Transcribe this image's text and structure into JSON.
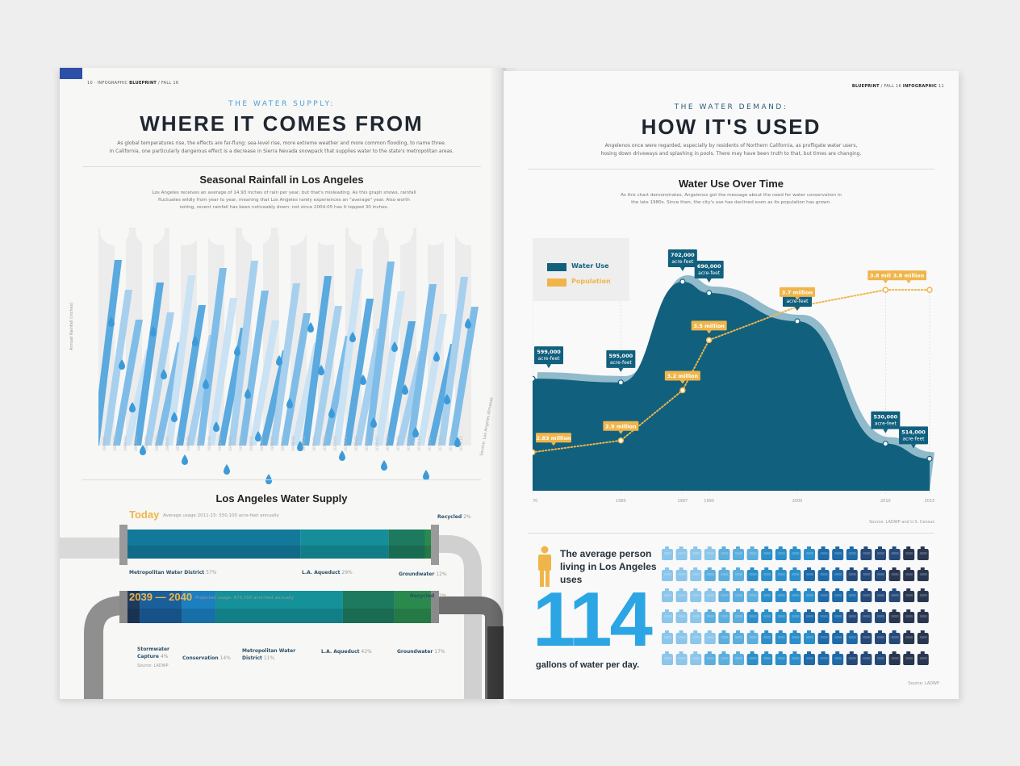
{
  "left_page": {
    "folio": {
      "page": "10",
      "section": "INFOGRAPHIC",
      "publication": "BLUEPRINT",
      "issue": "FALL 16"
    },
    "kicker": "THE WATER SUPPLY:",
    "headline": "WHERE IT COMES FROM",
    "intro_line1": "As global temperatures rise, the effects are far-flung: sea-level rise, more extreme weather and more common flooding, to name three.",
    "intro_line2": "In California, one particularly dangerous effect is a decrease in Sierra Nevada snowpack that supplies water to the state's metropolitan areas.",
    "rainfall": {
      "title": "Seasonal Rainfall in Los Angeles",
      "body_line1": "Los Angeles receives an average of 14.93 inches of rain per year, but that's misleading. As this graph shows, rainfall",
      "body_line2": "fluctuates wildly from year to year, meaning that Los Angeles rarely experiences an \"average\" year. Also worth",
      "body_line3": "noting, recent rainfall has been noticeably down: not since 2004-05 has it topped 30 inches.",
      "y_axis_label": "Annual Rainfall (inches)",
      "source": "Source: Los Angeles Almanac",
      "years": [
        "1980-81",
        "1981-82",
        "1982-83",
        "1983-84",
        "1984-85",
        "1985-86",
        "1986-87",
        "1987-88",
        "1988-89",
        "1989-90",
        "1990-91",
        "1991-92",
        "1992-93",
        "1993-94",
        "1994-95",
        "1995-96",
        "1996-97",
        "1997-98",
        "1998-99",
        "1999-00",
        "2000-01",
        "2001-02",
        "2002-03",
        "2003-04",
        "2004-05",
        "2005-06",
        "2006-07",
        "2007-08",
        "2008-09",
        "2009-10",
        "2010-11",
        "2011-12",
        "2012-13",
        "2013-14",
        "2014-15"
      ]
    },
    "supply": {
      "title": "Los Angeles Water Supply",
      "today_label": "Today",
      "today_note": "Average usage 2011-15: 550,100 acre-feet annually",
      "today_segments": [
        {
          "name": "Metropolitan Water District",
          "pct": "57%",
          "share": 57,
          "color": "#13799b"
        },
        {
          "name": "L.A. Aqueduct",
          "pct": "29%",
          "share": 29,
          "color": "#158e9a"
        },
        {
          "name": "Groundwater",
          "pct": "12%",
          "share": 12,
          "color": "#1d7a5e"
        },
        {
          "name": "Recycled",
          "pct": "2%",
          "share": 2,
          "color": "#2a8a4e"
        }
      ],
      "future_label": "2039 — 2040",
      "future_note": "Projected usage: 675,700 acre-feet annually",
      "future_segments": [
        {
          "name": "Stormwater Capture",
          "pct": "4%",
          "share": 4,
          "color": "#1d3a5c"
        },
        {
          "name": "Conservation",
          "pct": "14%",
          "share": 14,
          "color": "#1a5e9a"
        },
        {
          "name": "Metropolitan Water District",
          "pct": "11%",
          "share": 11,
          "color": "#1b7fc0"
        },
        {
          "name": "L.A. Aqueduct",
          "pct": "42%",
          "share": 42,
          "color": "#15919a"
        },
        {
          "name": "Groundwater",
          "pct": "17%",
          "share": 17,
          "color": "#1d7a5e"
        },
        {
          "name": "Recycled",
          "pct": "12%",
          "share": 12,
          "color": "#2a8a4e"
        }
      ],
      "source": "Source: LADWP"
    }
  },
  "right_page": {
    "folio": {
      "page": "11",
      "section": "INFOGRAPHIC",
      "publication": "BLUEPRINT",
      "issue": "FALL 16"
    },
    "kicker": "THE WATER DEMAND:",
    "headline": "HOW IT'S USED",
    "intro_line1": "Angelenos once were regarded, especially by residents of Northern California, as profligate water users,",
    "intro_line2": "hosing down driveways and splashing in pools. There may have been truth to that, but times are changing.",
    "water_use": {
      "title": "Water Use Over Time",
      "body_line1": "As this chart demonstrates, Angelenos got the message about the need for water conservation in",
      "body_line2": "the late 1980s. Since then, the city's use has declined even as its population has grown.",
      "legend_water": "Water Use",
      "legend_population": "Population",
      "source": "Source: LADWP and U.S. Census",
      "colors": {
        "water": "#11607e",
        "population": "#f0b54a"
      }
    },
    "usage": {
      "text": "The average person living in Los Angeles uses",
      "number": "114",
      "foot": "gallons of water per day.",
      "source": "Source: LADWP",
      "gallon_count": 114
    }
  },
  "chart_data": [
    {
      "type": "line",
      "title": "Water Use Over Time",
      "x": [
        1970,
        1980,
        1987,
        1990,
        2000,
        2010,
        2015
      ],
      "series": [
        {
          "name": "Water Use",
          "unit": "acre-feet",
          "values": [
            599000,
            595000,
            702000,
            690000,
            660000,
            530000,
            514000
          ],
          "labels": [
            "599,000",
            "595,000",
            "702,000",
            "690,000",
            "660,000",
            "530,000",
            "514,000"
          ],
          "label_unit": "acre-feet"
        },
        {
          "name": "Population",
          "unit": "million",
          "values": [
            2.83,
            2.9,
            3.2,
            3.5,
            3.7,
            3.8,
            3.8
          ],
          "labels": [
            "2.83 million",
            "2.9 million",
            "3.2 million",
            "3.5 million",
            "3.7 million",
            "3.8 million",
            "3.8 million"
          ]
        }
      ],
      "x_tick_labels": [
        "1970",
        "1980",
        "1987",
        "1990",
        "2000",
        "2010",
        "2015"
      ],
      "legend": "top-left"
    },
    {
      "type": "bar",
      "title": "Los Angeles Water Supply",
      "categories": [
        "Today",
        "2039 — 2040"
      ],
      "series": [
        {
          "name": "Metropolitan Water District",
          "values": [
            57,
            11
          ]
        },
        {
          "name": "L.A. Aqueduct",
          "values": [
            29,
            42
          ]
        },
        {
          "name": "Groundwater",
          "values": [
            12,
            17
          ]
        },
        {
          "name": "Recycled",
          "values": [
            2,
            12
          ]
        },
        {
          "name": "Conservation",
          "values": [
            0,
            14
          ]
        },
        {
          "name": "Stormwater Capture",
          "values": [
            0,
            4
          ]
        }
      ],
      "stacked": true
    }
  ]
}
